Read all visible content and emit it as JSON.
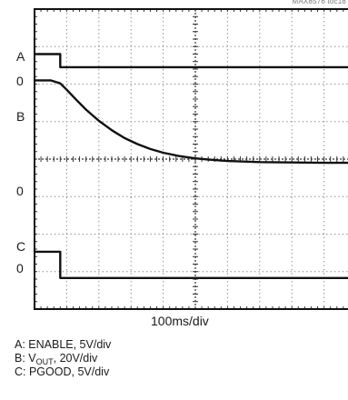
{
  "figure_id": "MAX8576 toc18",
  "chart_data": {
    "type": "line",
    "time_per_div": "100ms/div",
    "grid_divisions": {
      "x": 10,
      "y": 8
    },
    "grid": true,
    "channel_labels": {
      "a": "A",
      "a_zero": "0",
      "b": "B",
      "b_zero": "0",
      "c": "C",
      "c_zero": "0"
    },
    "series": [
      {
        "name": "ENABLE",
        "channel": "A",
        "scale": "5V/div",
        "zero_div": 6.45,
        "x_div": [
          0,
          0.8,
          0.8,
          10
        ],
        "y_div": [
          0.35,
          0.35,
          0,
          0
        ]
      },
      {
        "name": "VOUT",
        "channel": "B",
        "scale": "20V/div",
        "zero_div": 3.9,
        "x_div": [
          0,
          0.5,
          0.8,
          1.0,
          1.3,
          1.6,
          2.0,
          2.4,
          2.8,
          3.2,
          3.6,
          4.0,
          4.5,
          5.0,
          5.5,
          6.0,
          7.0,
          8.0,
          9.0,
          10.0
        ],
        "y_div": [
          2.2,
          2.2,
          2.12,
          1.95,
          1.68,
          1.42,
          1.12,
          0.87,
          0.66,
          0.5,
          0.37,
          0.27,
          0.18,
          0.12,
          0.08,
          0.05,
          0.02,
          0.01,
          0.0,
          0.0
        ]
      },
      {
        "name": "PGOOD",
        "channel": "C",
        "scale": "5V/div",
        "zero_div": 0.83,
        "x_div": [
          0,
          0.8,
          0.8,
          10
        ],
        "y_div": [
          0.7,
          0.7,
          0,
          0
        ]
      }
    ]
  },
  "legend": {
    "a": "A: ENABLE, 5V/div",
    "b_prefix": "B: V",
    "b_sub": "OUT",
    "b_suffix": ", 20V/div",
    "c": "C: PGOOD, 5V/div"
  }
}
